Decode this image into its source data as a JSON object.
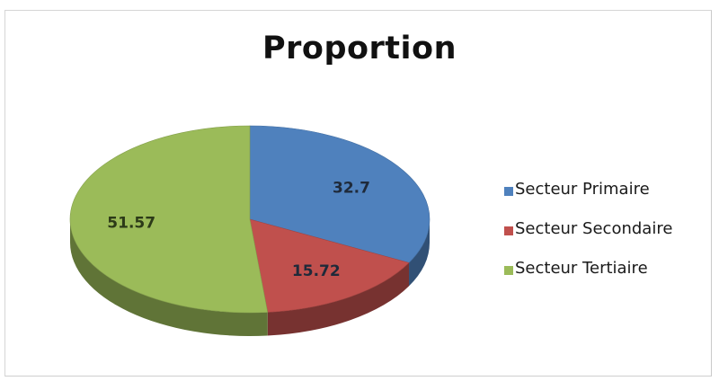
{
  "chart_data": {
    "type": "pie",
    "title": "Proportion",
    "categories": [
      "Secteur Primaire",
      "Secteur Secondaire",
      "Secteur Tertiaire"
    ],
    "values": [
      32.7,
      15.72,
      51.57
    ],
    "value_labels": [
      "32.7",
      "15.72",
      "51.57"
    ],
    "colors": [
      "#4f81bd",
      "#c0504d",
      "#9bbb59"
    ],
    "legend_position": "right",
    "style": "3d"
  }
}
